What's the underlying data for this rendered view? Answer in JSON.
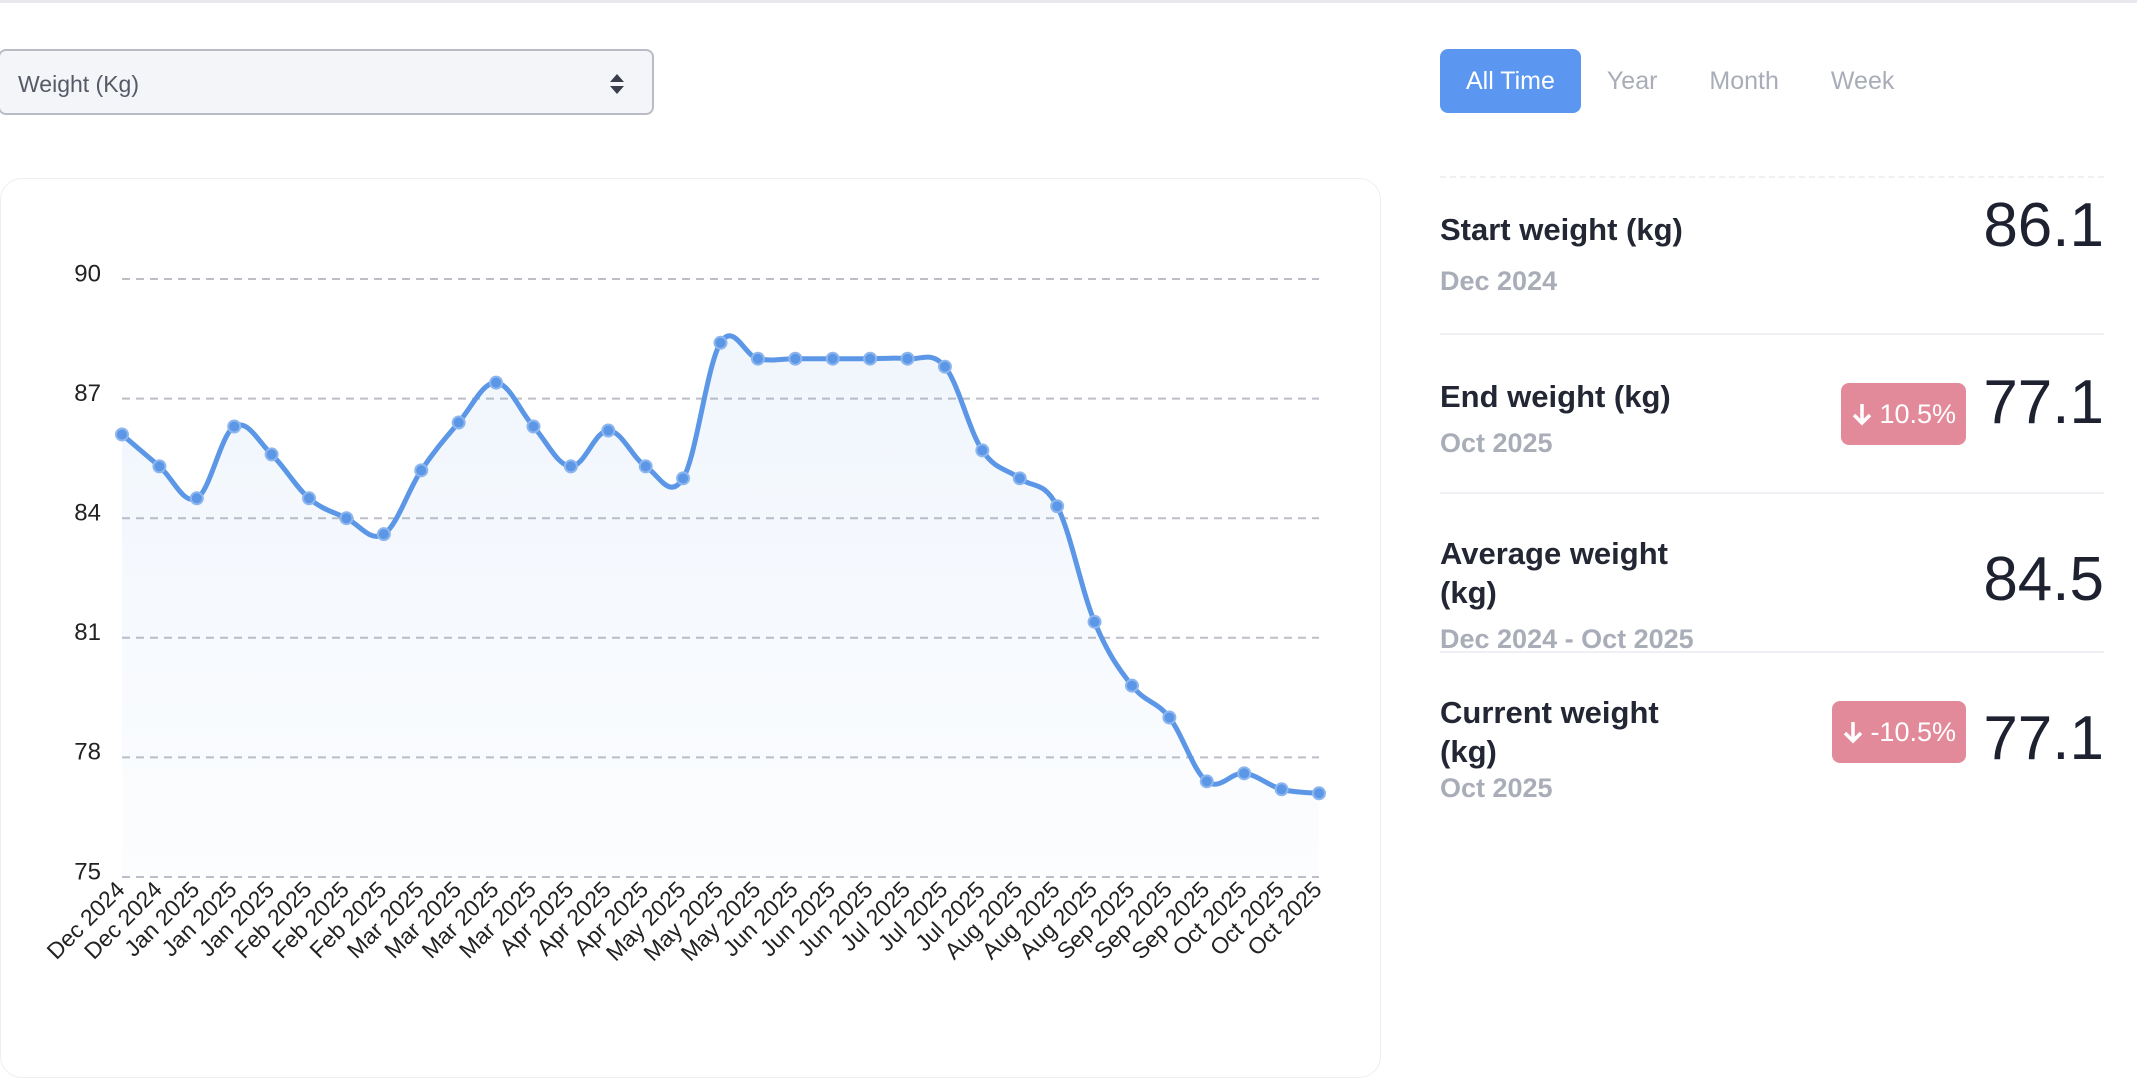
{
  "selector": {
    "label": "Weight (Kg)"
  },
  "tabs": [
    "All Time",
    "Year",
    "Month",
    "Week"
  ],
  "stats": [
    {
      "title": "Start weight (kg)",
      "subtitle": "Dec 2024",
      "value": 86.1
    },
    {
      "title": "End weight (kg)",
      "subtitle": "Oct 2025",
      "badge": "10.5%",
      "value": 77.1
    },
    {
      "title": "Average weight (kg)",
      "subtitle": "Dec 2024 - Oct 2025",
      "value": 84.5
    },
    {
      "title": "Current weight (kg)",
      "subtitle": "Oct 2025",
      "badge": "-10.5%",
      "value": 77.1
    }
  ],
  "chart_data": {
    "type": "line",
    "categories": [
      "Dec 2024",
      "Dec 2024",
      "Jan 2025",
      "Jan 2025",
      "Jan 2025",
      "Feb 2025",
      "Feb 2025",
      "Feb 2025",
      "Mar 2025",
      "Mar 2025",
      "Mar 2025",
      "Mar 2025",
      "Apr 2025",
      "Apr 2025",
      "Apr 2025",
      "May 2025",
      "May 2025",
      "May 2025",
      "Jun 2025",
      "Jun 2025",
      "Jun 2025",
      "Jul 2025",
      "Jul 2025",
      "Jul 2025",
      "Aug 2025",
      "Aug 2025",
      "Aug 2025",
      "Sep 2025",
      "Sep 2025",
      "Sep 2025",
      "Oct 2025",
      "Oct 2025",
      "Oct 2025"
    ],
    "series": [
      {
        "name": "Weight (Kg)",
        "color": "#5b97e6",
        "values": [
          86.1,
          85.3,
          84.5,
          86.3,
          85.6,
          84.5,
          84.0,
          83.6,
          85.2,
          86.4,
          87.4,
          86.3,
          85.3,
          86.2,
          85.3,
          85.0,
          88.4,
          88.0,
          88.0,
          88.0,
          88.0,
          88.0,
          87.8,
          85.7,
          85.0,
          84.3,
          81.4,
          79.8,
          79.0,
          77.4,
          77.6,
          77.2,
          77.1
        ]
      }
    ],
    "ylim": [
      75,
      90
    ],
    "yticks": [
      75,
      78,
      81,
      84,
      87,
      90
    ],
    "grid": true
  }
}
